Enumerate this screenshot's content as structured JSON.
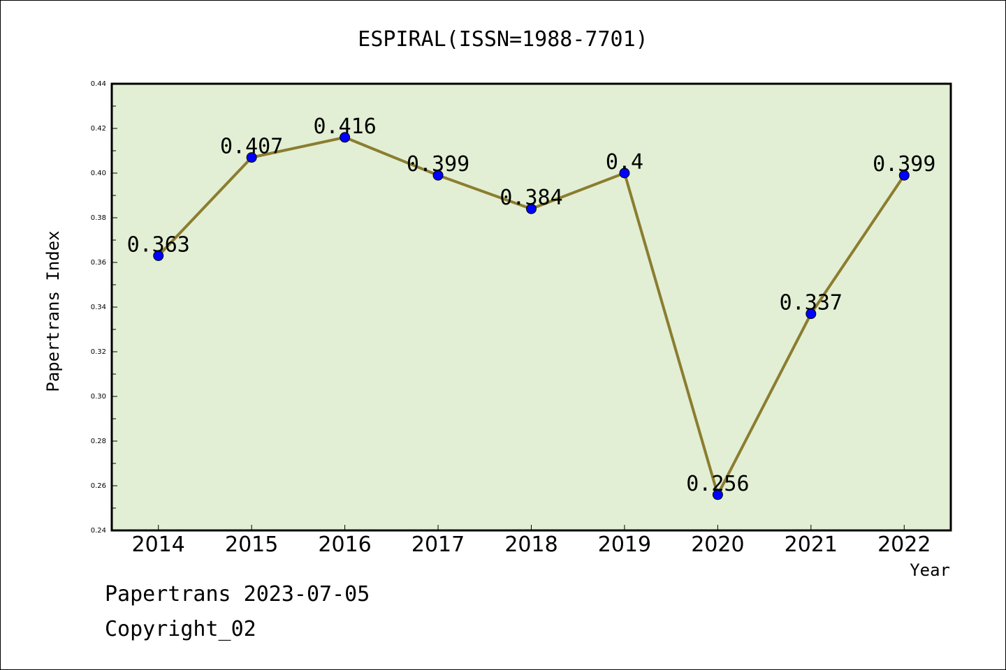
{
  "chart_data": {
    "type": "line",
    "title": "ESPIRAL(ISSN=1988-7701)",
    "xlabel": "Year",
    "ylabel": "Papertrans Index",
    "x": [
      "2014",
      "2015",
      "2016",
      "2017",
      "2018",
      "2019",
      "2020",
      "2021",
      "2022"
    ],
    "series": [
      {
        "values": [
          0.363,
          0.407,
          0.416,
          0.399,
          0.384,
          0.4,
          0.256,
          0.337,
          0.399
        ],
        "labels": [
          "0.363",
          "0.407",
          "0.416",
          "0.399",
          "0.384",
          "0.4",
          "0.256",
          "0.337",
          "0.399"
        ]
      }
    ],
    "ylim": [
      0.24,
      0.44
    ],
    "yticks": [
      "0.24",
      "0.26",
      "0.28",
      "0.30",
      "0.32",
      "0.34",
      "0.36",
      "0.38",
      "0.40",
      "0.42",
      "0.44"
    ],
    "grid": false,
    "legend": "none",
    "colors": {
      "plot_background": "#e2efd4",
      "line": "#8b7d30",
      "marker": "#0000ff",
      "axis": "#000000"
    }
  },
  "footer": {
    "source": "Papertrans 2023-07-05",
    "copyright": "Copyright_02"
  }
}
